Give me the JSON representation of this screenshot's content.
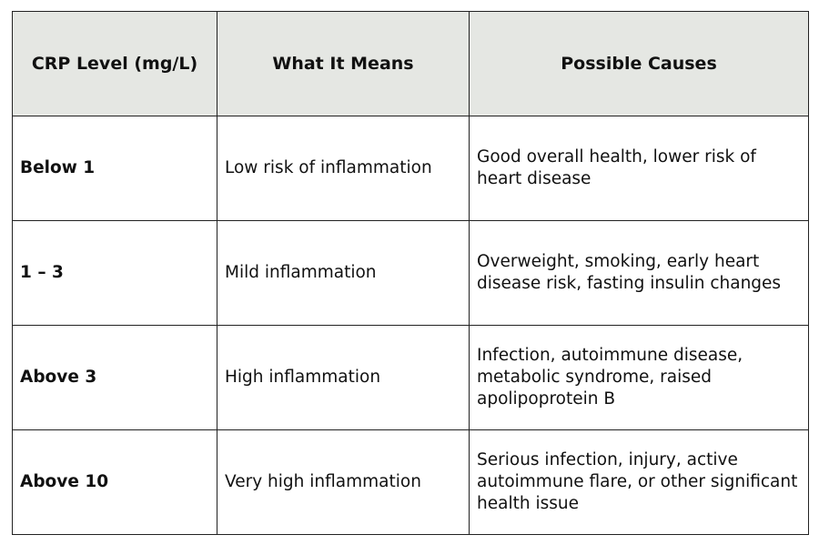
{
  "table": {
    "headers": [
      "CRP Level (mg/L)",
      "What It Means",
      "Possible Causes"
    ],
    "rows": [
      [
        "Below 1",
        "Low risk of inflammation",
        "Good overall health, lower risk of heart disease"
      ],
      [
        "1 – 3",
        "Mild inflammation",
        "Overweight, smoking, early heart disease risk, fasting insulin changes"
      ],
      [
        "Above 3",
        "High inflammation",
        "Infection, autoimmune disease, metabolic syndrome, raised apolipoprotein B"
      ],
      [
        "Above 10",
        "Very high inflammation",
        "Serious infection, injury, active autoimmune flare, or other significant health issue"
      ]
    ]
  },
  "colors": {
    "header_background": "#e5e7e3",
    "border": "#222222",
    "text": "#111111"
  }
}
